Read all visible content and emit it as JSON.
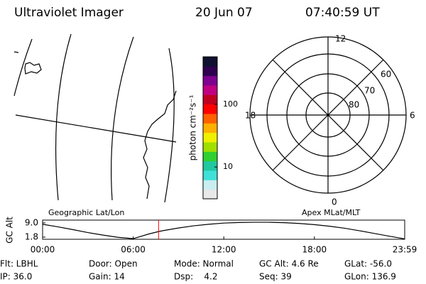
{
  "header": {
    "title": "Ultraviolet Imager",
    "date": "20 Jun 07",
    "time": "07:40:59 UT"
  },
  "panels": {
    "geo_label": "Geographic Lat/Lon",
    "polar_label": "Apex MLat/MLT",
    "mlt_labels": [
      "12",
      "18",
      "6",
      "0"
    ],
    "lat_labels": [
      "60",
      "70",
      "80"
    ]
  },
  "chart_data": [
    {
      "type": "colorbar",
      "title": "photon cm⁻²s⁻¹",
      "log": true,
      "ylim": [
        3.1,
        575
      ],
      "yticks": [
        10,
        100
      ],
      "colors": [
        "#e8e8e8",
        "#c8eef0",
        "#40e0d8",
        "#20c8a0",
        "#30d030",
        "#a0e000",
        "#f0f000",
        "#ffb000",
        "#ff6000",
        "#ff0000",
        "#c00020",
        "#c00080",
        "#800090",
        "#300050",
        "#101030"
      ]
    },
    {
      "type": "line",
      "y_label": "GC Alt",
      "x": [
        0,
        1,
        2,
        3,
        4,
        5,
        6,
        7,
        7.68,
        8,
        9,
        10,
        11,
        12,
        13,
        14,
        15,
        16,
        17,
        18,
        19,
        20,
        21,
        22,
        23,
        23.98
      ],
      "values": [
        8.3,
        7.0,
        5.6,
        4.1,
        2.8,
        1.7,
        1.0,
        3.3,
        4.6,
        5.1,
        6.4,
        7.5,
        8.3,
        8.9,
        9.2,
        9.3,
        9.3,
        9.1,
        8.7,
        8.1,
        7.3,
        6.3,
        5.0,
        3.6,
        2.2,
        0.9
      ],
      "color": "#000000",
      "xlim": [
        0,
        23.98
      ],
      "ylim": [
        0.7,
        10.4
      ],
      "xticks": [
        {
          "value": 0,
          "label": "00:00"
        },
        {
          "value": 6,
          "label": "06:00"
        },
        {
          "value": 12,
          "label": "12:00"
        },
        {
          "value": 18,
          "label": "18:00"
        },
        {
          "value": 23.98,
          "label": "23:59"
        }
      ],
      "yticks": [
        {
          "value": 1.8,
          "label": "1.8"
        },
        {
          "value": 9.0,
          "label": "9.0"
        }
      ],
      "marker": {
        "x": 7.68,
        "color": "#ff0000"
      }
    }
  ],
  "info": {
    "rows": [
      [
        "Flt: LBHL",
        "Door: Open",
        "Mode: Normal",
        "GC Alt: 4.6 Re",
        "GLat: -56.0"
      ],
      [
        "IP: 36.0",
        "Gain: 14",
        "Dsp:    4.2",
        "Seq: 39",
        "GLon: 136.9"
      ]
    ]
  }
}
